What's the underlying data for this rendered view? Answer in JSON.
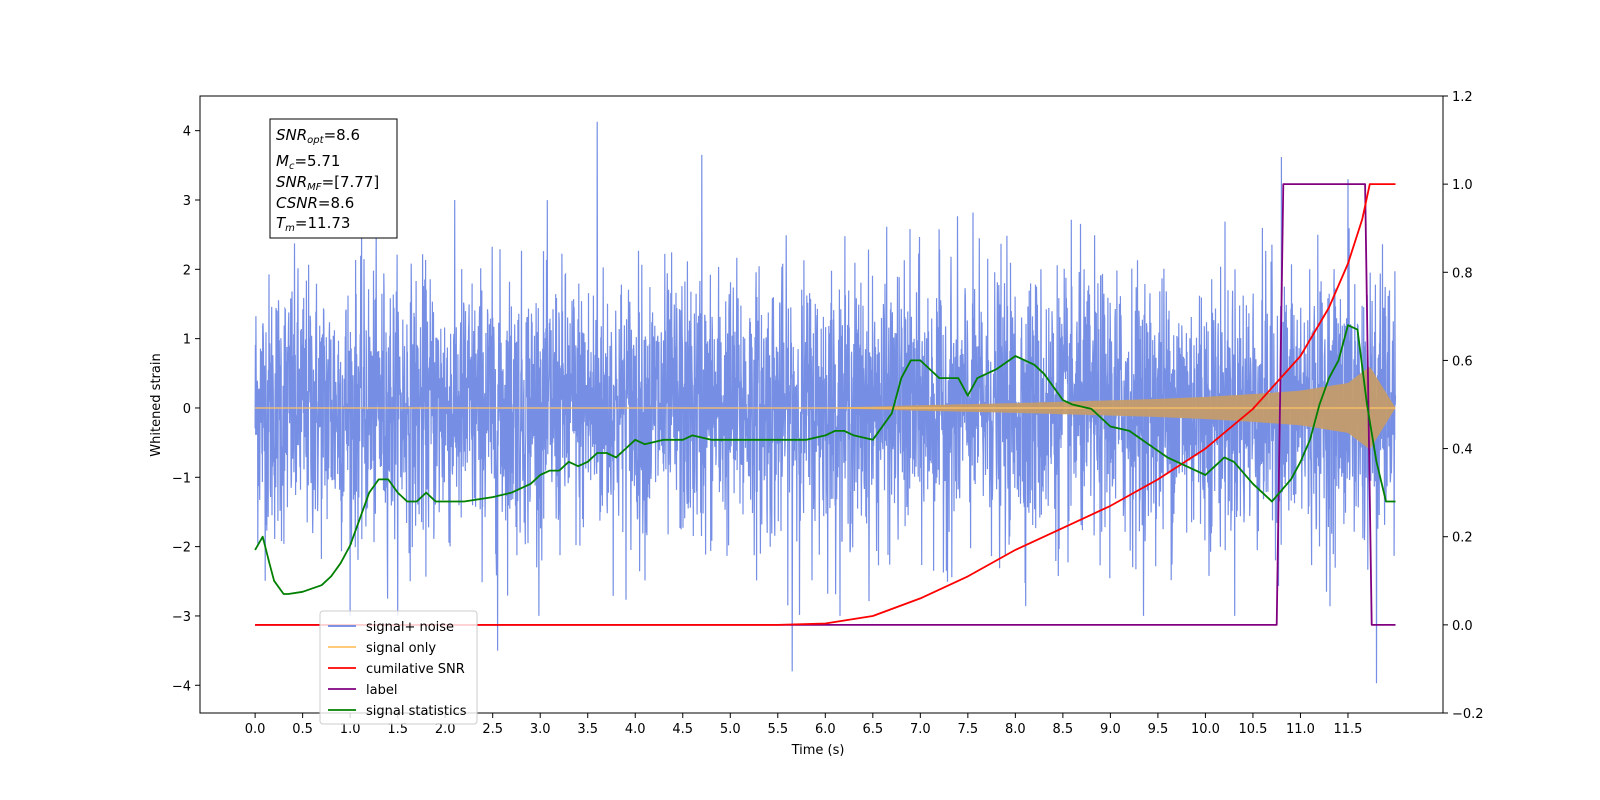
{
  "chart_data": {
    "type": "line",
    "xlabel": "Time (s)",
    "ylabel": "Whitened strain",
    "xlim": [
      -0.58,
      12.5
    ],
    "ylim": [
      -4.4,
      4.5
    ],
    "y2lim": [
      -0.2,
      1.2
    ],
    "x_ticks": [
      "0.0",
      "0.5",
      "1.0",
      "1.5",
      "2.0",
      "2.5",
      "3.0",
      "3.5",
      "4.0",
      "4.5",
      "5.0",
      "5.5",
      "6.0",
      "6.5",
      "7.0",
      "7.5",
      "8.0",
      "8.5",
      "9.0",
      "9.5",
      "10.0",
      "10.5",
      "11.0",
      "11.5"
    ],
    "y_ticks": [
      "4",
      "3",
      "2",
      "1",
      "0",
      "−1",
      "−2",
      "−3",
      "−4"
    ],
    "y2_ticks": [
      "1.2",
      "1.0",
      "0.8",
      "0.6",
      "0.4",
      "0.2",
      "0.0",
      "−0.2"
    ],
    "grid": false,
    "legend": {
      "placement": "lower-left",
      "entries": [
        {
          "label": "signal+ noise",
          "color": "#6a86e3"
        },
        {
          "label": "signal only",
          "color": "#ffc266"
        },
        {
          "label": "cumilative SNR",
          "color": "#ff0000"
        },
        {
          "label": "label",
          "color": "#800080"
        },
        {
          "label": "signal statistics",
          "color": "#008000"
        }
      ]
    },
    "annotations": {
      "snr_opt": "=8.6",
      "mc": "=5.71",
      "snr_mf": "=[7.77]",
      "csnr": "=8.6",
      "tm": "=11.73"
    },
    "series": [
      {
        "name": "signal+ noise",
        "axis": "left",
        "kind": "noise-band",
        "x_range": [
          0.0,
          12.0
        ],
        "envelope_typical": [
          -1.9,
          2.0
        ],
        "peaks": [
          [
            3.6,
            4.13
          ],
          [
            4.7,
            3.65
          ],
          [
            10.8,
            3.62
          ],
          [
            11.5,
            3.3
          ],
          [
            5.65,
            -3.8
          ],
          [
            11.8,
            -3.97
          ],
          [
            2.55,
            -3.5
          ]
        ]
      },
      {
        "name": "signal only",
        "axis": "left",
        "kind": "chirp-envelope",
        "x": [
          0,
          6.0,
          6.5,
          7.0,
          7.5,
          8.0,
          8.5,
          9.0,
          9.5,
          10.0,
          10.5,
          11.0,
          11.5,
          11.73,
          12.0
        ],
        "amplitude": [
          0,
          0.005,
          0.02,
          0.04,
          0.055,
          0.07,
          0.09,
          0.11,
          0.13,
          0.16,
          0.2,
          0.25,
          0.36,
          0.6,
          0
        ]
      },
      {
        "name": "cumilative SNR",
        "axis": "right",
        "x": [
          0,
          5.5,
          6.0,
          6.5,
          7.0,
          7.5,
          8.0,
          8.5,
          9.0,
          9.5,
          10.0,
          10.5,
          11.0,
          11.3,
          11.5,
          11.65,
          11.73,
          11.8,
          12.0
        ],
        "values": [
          0,
          0.0,
          0.003,
          0.02,
          0.06,
          0.11,
          0.17,
          0.22,
          0.27,
          0.33,
          0.4,
          0.49,
          0.61,
          0.72,
          0.82,
          0.92,
          1.0,
          1.0,
          1.0
        ]
      },
      {
        "name": "label",
        "axis": "right",
        "x": [
          0,
          10.75,
          10.82,
          11.68,
          11.75,
          12.0
        ],
        "values": [
          0,
          0,
          1,
          1,
          0,
          0
        ]
      },
      {
        "name": "signal statistics",
        "axis": "right",
        "x": [
          0,
          0.08,
          0.15,
          0.2,
          0.3,
          0.35,
          0.5,
          0.7,
          0.8,
          0.9,
          1.0,
          1.1,
          1.2,
          1.3,
          1.4,
          1.5,
          1.6,
          1.7,
          1.8,
          1.9,
          2.0,
          2.2,
          2.5,
          2.7,
          2.9,
          3.0,
          3.1,
          3.2,
          3.3,
          3.4,
          3.5,
          3.6,
          3.7,
          3.8,
          3.9,
          4.0,
          4.1,
          4.3,
          4.5,
          4.6,
          4.8,
          5.0,
          5.2,
          5.4,
          5.6,
          5.8,
          6.0,
          6.1,
          6.2,
          6.3,
          6.5,
          6.7,
          6.8,
          6.9,
          7.0,
          7.2,
          7.4,
          7.5,
          7.6,
          7.8,
          8.0,
          8.2,
          8.3,
          8.5,
          8.6,
          8.8,
          9.0,
          9.2,
          9.4,
          9.6,
          9.8,
          10.0,
          10.1,
          10.2,
          10.3,
          10.5,
          10.7,
          10.9,
          11.0,
          11.1,
          11.2,
          11.3,
          11.4,
          11.5,
          11.6,
          11.7,
          11.8,
          11.9,
          12.0
        ],
        "values": [
          0.17,
          0.2,
          0.14,
          0.1,
          0.07,
          0.07,
          0.075,
          0.09,
          0.11,
          0.14,
          0.18,
          0.24,
          0.3,
          0.33,
          0.33,
          0.3,
          0.28,
          0.28,
          0.3,
          0.28,
          0.28,
          0.28,
          0.29,
          0.3,
          0.32,
          0.34,
          0.35,
          0.35,
          0.37,
          0.36,
          0.37,
          0.39,
          0.39,
          0.38,
          0.4,
          0.42,
          0.41,
          0.42,
          0.42,
          0.43,
          0.42,
          0.42,
          0.42,
          0.42,
          0.42,
          0.42,
          0.43,
          0.44,
          0.44,
          0.43,
          0.42,
          0.48,
          0.56,
          0.6,
          0.6,
          0.56,
          0.56,
          0.52,
          0.56,
          0.58,
          0.61,
          0.59,
          0.57,
          0.51,
          0.5,
          0.49,
          0.45,
          0.44,
          0.41,
          0.38,
          0.36,
          0.34,
          0.36,
          0.38,
          0.37,
          0.32,
          0.28,
          0.33,
          0.37,
          0.42,
          0.5,
          0.56,
          0.6,
          0.68,
          0.67,
          0.5,
          0.37,
          0.28,
          0.28
        ]
      }
    ]
  }
}
